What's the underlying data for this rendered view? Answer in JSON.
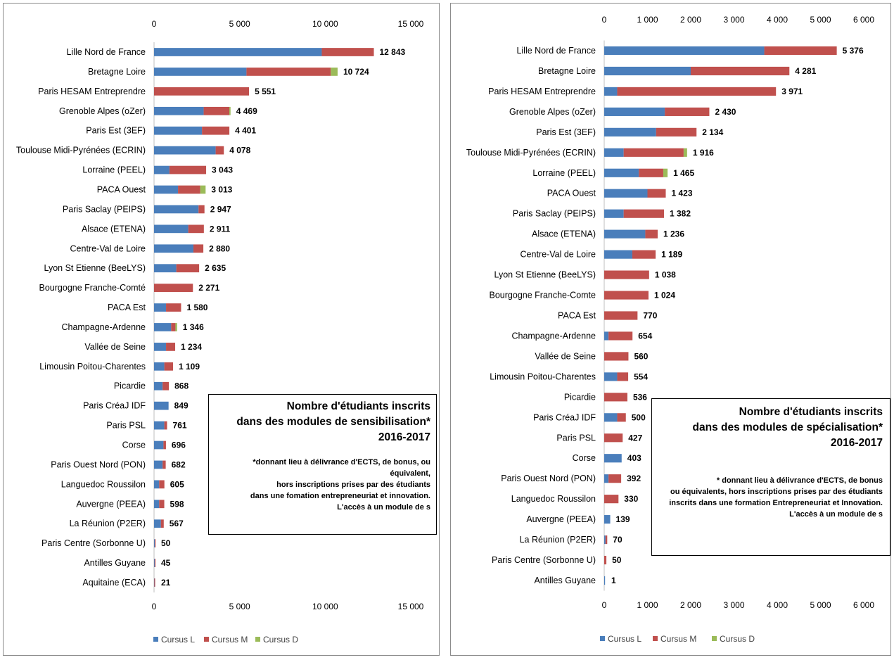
{
  "colors": {
    "cursus_l": "#4a7ebb",
    "cursus_m": "#c0504d",
    "cursus_d": "#9bbb59",
    "grid": "#d9d9d9",
    "text": "#000000"
  },
  "chart_data": [
    {
      "type": "bar",
      "orientation": "horizontal",
      "stacked": true,
      "title": "Nombre d'étudiants inscrits dans des modules de sensibilisation* 2016-2017",
      "note": "*donnant lieu à délivrance d'ECTS, de bonus, ou équivalent, hors inscriptions prises par des étudiants dans une formation entrepreneuriat et innovation. L'accès à un module de s",
      "xlim": [
        0,
        15000
      ],
      "xticks": [
        0,
        5000,
        10000,
        15000
      ],
      "xtick_labels": [
        "0",
        "5 000",
        "10 000",
        "15 000"
      ],
      "grid": false,
      "legend_position": "bottom",
      "categories": [
        "Lille Nord de France",
        "Bretagne Loire",
        "Paris HESAM Entreprendre",
        "Grenoble Alpes (oZer)",
        "Paris Est (3EF)",
        "Toulouse Midi-Pyrénées (ECRIN)",
        "Lorraine (PEEL)",
        "PACA Ouest",
        "Paris Saclay (PEIPS)",
        "Alsace (ETENA)",
        "Centre-Val de Loire",
        "Lyon St Etienne (BeeLYS)",
        "Bourgogne Franche-Comté",
        "PACA Est",
        "Champagne-Ardenne",
        "Vallée de Seine",
        "Limousin Poitou-Charentes",
        "Picardie",
        "Paris CréaJ IDF",
        "Paris PSL",
        "Corse",
        "Paris Ouest Nord (PON)",
        "Languedoc Roussilon",
        "Auvergne (PEEA)",
        "La Réunion (P2ER)",
        "Paris Centre (Sorbonne U)",
        "Antilles Guyane",
        "Aquitaine (ECA)"
      ],
      "series": [
        {
          "name": "Cursus L",
          "values": [
            9800,
            5400,
            0,
            2900,
            2800,
            3600,
            900,
            1400,
            2600,
            2000,
            2300,
            1300,
            0,
            700,
            1000,
            700,
            600,
            500,
            849,
            600,
            550,
            500,
            300,
            300,
            400,
            40,
            35,
            15
          ]
        },
        {
          "name": "Cursus M",
          "values": [
            3043,
            4924,
            5551,
            1500,
            1601,
            478,
            2143,
            1300,
            347,
            911,
            580,
            1335,
            2271,
            880,
            250,
            534,
            509,
            368,
            0,
            161,
            146,
            182,
            305,
            298,
            167,
            10,
            10,
            6
          ]
        },
        {
          "name": "Cursus D",
          "values": [
            0,
            400,
            0,
            69,
            0,
            0,
            0,
            313,
            0,
            0,
            0,
            0,
            0,
            0,
            96,
            0,
            0,
            0,
            0,
            0,
            0,
            0,
            0,
            0,
            0,
            0,
            0,
            0
          ]
        }
      ],
      "totals": [
        12843,
        10724,
        5551,
        4469,
        4401,
        4078,
        3043,
        3013,
        2947,
        2911,
        2880,
        2635,
        2271,
        1580,
        1346,
        1234,
        1109,
        868,
        849,
        761,
        696,
        682,
        605,
        598,
        567,
        50,
        45,
        21
      ],
      "total_labels": [
        "12 843",
        "10 724",
        "5 551",
        "4 469",
        "4 401",
        "4 078",
        "3 043",
        "3 013",
        "2 947",
        "2 911",
        "2 880",
        "2 635",
        "2 271",
        "1 580",
        "1 346",
        "1 234",
        "1 109",
        "868",
        "849",
        "761",
        "696",
        "682",
        "605",
        "598",
        "567",
        "50",
        "45",
        "21"
      ]
    },
    {
      "type": "bar",
      "orientation": "horizontal",
      "stacked": true,
      "title": "Nombre d'étudiants inscrits dans des modules de spécialisation* 2016-2017",
      "note": "* donnant lieu à délivrance d'ECTS, de bonus ou équivalents, hors inscriptions prises par des étudiants inscrits dans une formation Entrepreneuriat et Innovation. L'accès à un module de s",
      "xlim": [
        0,
        6000
      ],
      "xticks": [
        0,
        1000,
        2000,
        3000,
        4000,
        5000,
        6000
      ],
      "xtick_labels": [
        "0",
        "1 000",
        "2 000",
        "3 000",
        "4 000",
        "5 000",
        "6 000"
      ],
      "grid": false,
      "legend_position": "bottom",
      "categories": [
        "Lille Nord de France",
        "Bretagne Loire",
        "Paris HESAM Entreprendre",
        "Grenoble Alpes (oZer)",
        "Paris Est (3EF)",
        "Toulouse Midi-Pyrénées (ECRIN)",
        "Lorraine (PEEL)",
        "PACA Ouest",
        "Paris Saclay (PEIPS)",
        "Alsace (ETENA)",
        "Centre-Val de Loire",
        "Lyon St Etienne (BeeLYS)",
        "Bourgogne Franche-Comte",
        "PACA Est",
        "Champagne-Ardenne",
        "Vallée de Seine",
        "Limousin Poitou-Charentes",
        "Picardie",
        "Paris CréaJ IDF",
        "Paris PSL",
        "Corse",
        "Paris Ouest Nord (PON)",
        "Languedoc Roussilon",
        "Auvergne (PEEA)",
        "La Réunion (P2ER)",
        "Paris Centre (Sorbonne U)",
        "Antilles Guyane"
      ],
      "series": [
        {
          "name": "Cursus L",
          "values": [
            3700,
            2000,
            300,
            1400,
            1200,
            450,
            800,
            1000,
            450,
            950,
            650,
            0,
            0,
            0,
            100,
            0,
            300,
            0,
            300,
            0,
            403,
            100,
            0,
            139,
            30,
            0,
            1
          ]
        },
        {
          "name": "Cursus M",
          "values": [
            1676,
            2281,
            3671,
            1030,
            934,
            1386,
            565,
            423,
            932,
            286,
            539,
            1038,
            1024,
            770,
            554,
            560,
            254,
            536,
            200,
            427,
            0,
            292,
            330,
            0,
            40,
            50,
            0
          ]
        },
        {
          "name": "Cursus D",
          "values": [
            0,
            0,
            0,
            0,
            0,
            80,
            100,
            0,
            0,
            0,
            0,
            0,
            0,
            0,
            0,
            0,
            0,
            0,
            0,
            0,
            0,
            0,
            0,
            0,
            0,
            0,
            0
          ]
        }
      ],
      "totals": [
        5376,
        4281,
        3971,
        2430,
        2134,
        1916,
        1465,
        1423,
        1382,
        1236,
        1189,
        1038,
        1024,
        770,
        654,
        560,
        554,
        536,
        500,
        427,
        403,
        392,
        330,
        139,
        70,
        50,
        1
      ],
      "total_labels": [
        "5 376",
        "4 281",
        "3 971",
        "2 430",
        "2 134",
        "1 916",
        "1 465",
        "1 423",
        "1 382",
        "1 236",
        "1 189",
        "1 038",
        "1 024",
        "770",
        "654",
        "560",
        "554",
        "536",
        "500",
        "427",
        "403",
        "392",
        "330",
        "139",
        "70",
        "50",
        "1"
      ]
    }
  ],
  "notes": {
    "left": {
      "title_lines": [
        "Nombre d'étudiants inscrits",
        "dans des modules de sensibilisation*",
        "2016-2017"
      ],
      "footnote_lines": [
        "*donnant lieu à délivrance d'ECTS, de bonus, ou équivalent,",
        "hors inscriptions prises par des étudiants",
        "dans une fomation entrepreneuriat et innovation.",
        "L'accès à un module de s"
      ]
    },
    "right": {
      "title_lines": [
        "Nombre d'étudiants inscrits",
        "dans des modules de spécialisation*",
        "2016-2017"
      ],
      "footnote_lines": [
        "* donnant lieu à délivrance d'ECTS, de bonus",
        "ou équivalents, hors inscriptions prises par des étudiants",
        "inscrits dans une formation Entrepreneuriat et Innovation.",
        "L'accès à un module de s"
      ]
    }
  }
}
